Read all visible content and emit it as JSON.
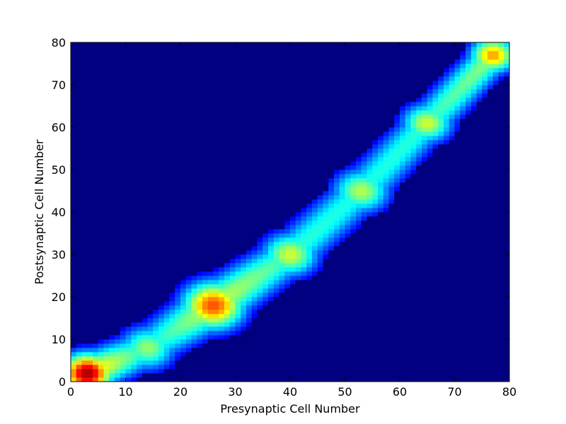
{
  "chart_data": {
    "type": "heatmap",
    "title": "",
    "xlabel": "Presynaptic Cell Number",
    "ylabel": "Postsynaptic Cell Number",
    "xlim": [
      0,
      80
    ],
    "ylim": [
      0,
      80
    ],
    "xticks": [
      "0",
      "10",
      "20",
      "30",
      "40",
      "50",
      "60",
      "70",
      "80"
    ],
    "yticks": [
      "0",
      "10",
      "20",
      "30",
      "40",
      "50",
      "60",
      "70",
      "80"
    ],
    "grid": false,
    "colormap": "jet",
    "value_range": [
      0,
      1
    ],
    "background_value": 0,
    "matrix_size": [
      80,
      80
    ],
    "diagonal_blobs": [
      {
        "pre": 3,
        "post": 2,
        "intensity": 0.97,
        "half_width": 4.5
      },
      {
        "pre": 14,
        "post": 8,
        "intensity": 0.52,
        "half_width": 5.0
      },
      {
        "pre": 26,
        "post": 18,
        "intensity": 0.8,
        "half_width": 5.5
      },
      {
        "pre": 40,
        "post": 30,
        "intensity": 0.58,
        "half_width": 5.0
      },
      {
        "pre": 53,
        "post": 45,
        "intensity": 0.55,
        "half_width": 5.0
      },
      {
        "pre": 65,
        "post": 61,
        "intensity": 0.58,
        "half_width": 4.5
      },
      {
        "pre": 77,
        "post": 77,
        "intensity": 0.72,
        "half_width": 4.0
      }
    ]
  }
}
